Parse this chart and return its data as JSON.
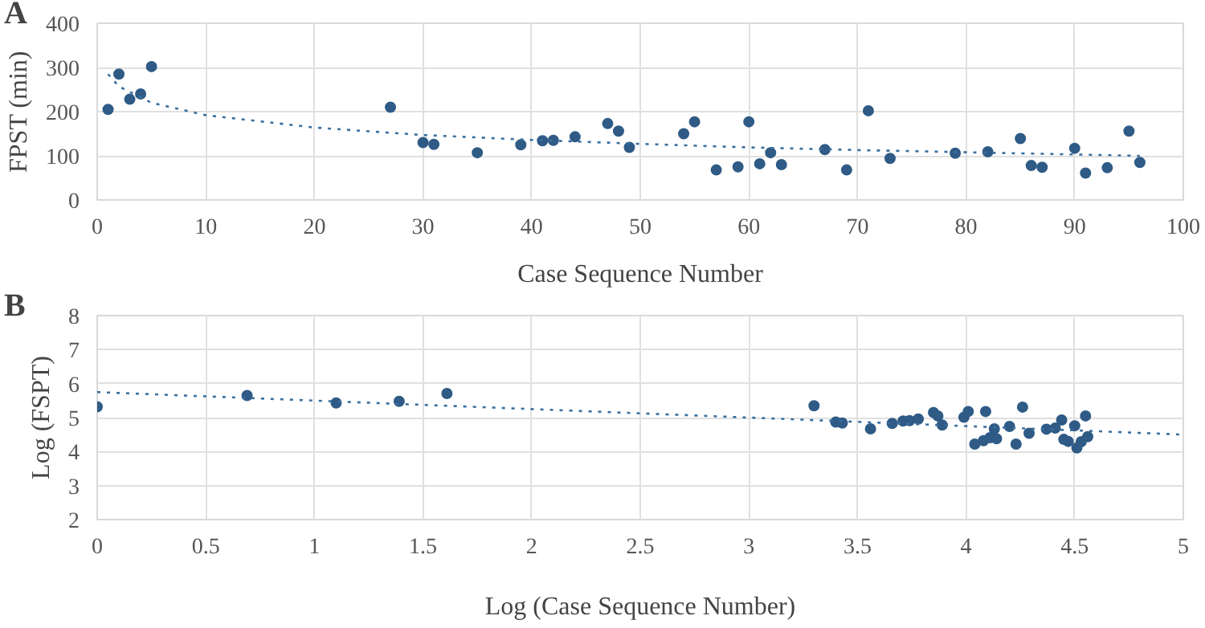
{
  "chart_data": [
    {
      "type": "scatter",
      "title": "A",
      "xlabel": "Case Sequence Number",
      "ylabel": "FPST (min)",
      "xlim": [
        0,
        100
      ],
      "xticks": [
        0,
        10,
        20,
        30,
        40,
        50,
        60,
        70,
        80,
        90,
        100
      ],
      "ylim": [
        0,
        400
      ],
      "yticks": [
        0,
        100,
        200,
        300,
        400
      ],
      "grid": true,
      "series": [
        {
          "marker": "circle",
          "color": "#2f5b86",
          "x": [
            1,
            2,
            3,
            4,
            5,
            27,
            30,
            31,
            35,
            39,
            41,
            42,
            44,
            47,
            48,
            49,
            54,
            55,
            57,
            59,
            60,
            61,
            62,
            63,
            67,
            69,
            71,
            73,
            79,
            82,
            85,
            86,
            87,
            90,
            91,
            93,
            95,
            96
          ],
          "values": [
            205,
            285,
            228,
            240,
            302,
            210,
            130,
            126,
            107,
            125,
            134,
            135,
            143,
            173,
            156,
            119,
            150,
            177,
            68,
            75,
            177,
            82,
            107,
            80,
            114,
            68,
            202,
            94,
            106,
            109,
            139,
            78,
            74,
            117,
            61,
            73,
            156,
            85
          ]
        },
        {
          "type": "line",
          "line_style": "dotted",
          "color": "#3a6f9f",
          "x": [
            1,
            2,
            5,
            10,
            20,
            30,
            40,
            50,
            60,
            70,
            80,
            90,
            96
          ],
          "values": [
            285,
            257,
            220,
            192,
            164,
            147,
            136,
            127,
            119,
            113,
            108,
            103,
            100
          ]
        }
      ]
    },
    {
      "type": "scatter",
      "title": "B",
      "xlabel": "Log (Case Sequence Number)",
      "ylabel": "Log (FSPT)",
      "xlim": [
        0,
        5
      ],
      "xticks": [
        0,
        0.5,
        1,
        1.5,
        2,
        2.5,
        3,
        3.5,
        4,
        4.5,
        5
      ],
      "ylim": [
        2,
        8
      ],
      "yticks": [
        2,
        3,
        4,
        5,
        6,
        7,
        8
      ],
      "grid": true,
      "series": [
        {
          "marker": "circle",
          "color": "#2f5b86",
          "x": [
            0,
            0.69,
            1.1,
            1.39,
            1.61,
            3.3,
            3.4,
            3.43,
            3.56,
            3.66,
            3.71,
            3.74,
            3.78,
            3.85,
            3.87,
            3.89,
            3.99,
            4.01,
            4.04,
            4.08,
            4.09,
            4.11,
            4.13,
            4.14,
            4.2,
            4.23,
            4.26,
            4.29,
            4.37,
            4.41,
            4.44,
            4.45,
            4.47,
            4.5,
            4.51,
            4.53,
            4.55,
            4.56
          ],
          "values": [
            5.32,
            5.65,
            5.43,
            5.48,
            5.71,
            5.35,
            4.87,
            4.84,
            4.67,
            4.83,
            4.9,
            4.91,
            4.96,
            5.15,
            5.05,
            4.78,
            5.01,
            5.18,
            4.22,
            4.32,
            5.18,
            4.41,
            4.67,
            4.38,
            4.74,
            4.22,
            5.31,
            4.54,
            4.66,
            4.69,
            4.93,
            4.36,
            4.3,
            4.76,
            4.11,
            4.29,
            5.05,
            4.44
          ]
        },
        {
          "type": "line",
          "line_style": "dotted",
          "color": "#3a6f9f",
          "x": [
            0,
            5
          ],
          "values": [
            5.75,
            4.5
          ]
        }
      ]
    }
  ]
}
